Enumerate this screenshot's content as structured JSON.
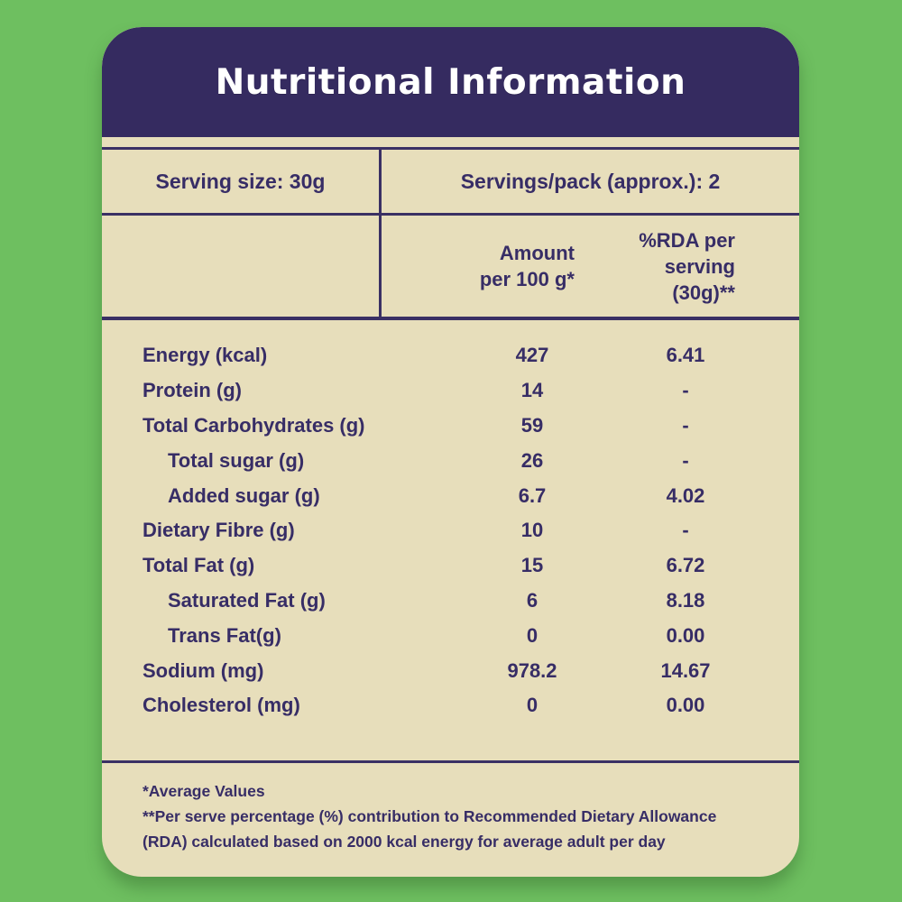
{
  "colors": {
    "background_green": "#6ebf60",
    "header_navy": "#352b60",
    "panel_cream": "#e7debb",
    "ink_navy": "#372d66"
  },
  "header": {
    "title": "Nutritional Information"
  },
  "serving_row": {
    "serving_size": "Serving size: 30g",
    "servings_per_pack": "Servings/pack (approx.): 2"
  },
  "columns": {
    "amount_lines": [
      "Amount",
      "per 100 g*"
    ],
    "rda_lines": [
      "%RDA per",
      "serving",
      "(30g)**"
    ]
  },
  "rows": [
    {
      "name": "Energy (kcal)",
      "amount": "427",
      "rda": "6.41"
    },
    {
      "name": "Protein (g)",
      "amount": "14",
      "rda": "-"
    },
    {
      "name": "Total Carbohydrates (g)",
      "amount": "59",
      "rda": "-"
    },
    {
      "name": "Total sugar (g)",
      "amount": "26",
      "rda": "-"
    },
    {
      "name": "Added sugar (g)",
      "amount": "6.7",
      "rda": "4.02"
    },
    {
      "name": "Dietary Fibre (g)",
      "amount": "10",
      "rda": "-"
    },
    {
      "name": "Total Fat (g)",
      "amount": "15",
      "rda": "6.72"
    },
    {
      "name": "Saturated Fat (g)",
      "amount": "6",
      "rda": "8.18"
    },
    {
      "name": "Trans Fat(g)",
      "amount": "0",
      "rda": "0.00"
    },
    {
      "name": "Sodium (mg)",
      "amount": "978.2",
      "rda": "14.67"
    },
    {
      "name": "Cholesterol (mg)",
      "amount": "0",
      "rda": "0.00"
    }
  ],
  "footnotes": [
    "*Average Values",
    "**Per serve percentage (%) contribution to Recommended Dietary Allowance",
    "(RDA) calculated based on 2000 kcal energy for average adult per day"
  ]
}
